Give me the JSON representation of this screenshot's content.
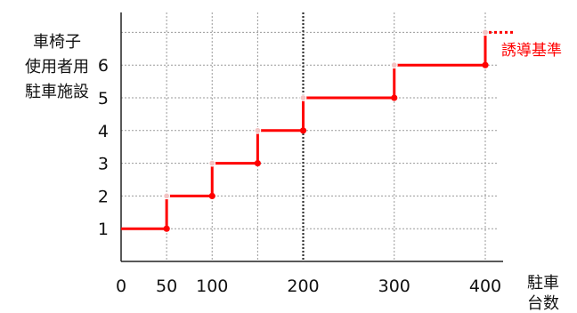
{
  "chart_data": {
    "type": "line",
    "step": true,
    "ylabel_lines": [
      "車椅子",
      "使用者用",
      "駐車施設"
    ],
    "xlabel_lines": [
      "駐車",
      "台数"
    ],
    "x_ticks": [
      0,
      50,
      100,
      200,
      300,
      400
    ],
    "x_tick_labels": [
      "0",
      "50",
      "100",
      "200",
      "300",
      "400"
    ],
    "x_gridlines": [
      50,
      100,
      150,
      200,
      300,
      400
    ],
    "x_dotted_line": 200,
    "y_ticks": [
      1,
      2,
      3,
      4,
      5,
      6
    ],
    "y_tick_labels": [
      "1",
      "2",
      "3",
      "4",
      "5",
      "6"
    ],
    "xlim": [
      0,
      400
    ],
    "ylim": [
      0,
      7
    ],
    "grid": true,
    "series": [
      {
        "color": "#ff0000",
        "steps": [
          {
            "from": 0,
            "to": 50,
            "value": 1
          },
          {
            "from": 50,
            "to": 100,
            "value": 2
          },
          {
            "from": 100,
            "to": 150,
            "value": 3
          },
          {
            "from": 150,
            "to": 200,
            "value": 4
          },
          {
            "from": 200,
            "to": 300,
            "value": 5
          },
          {
            "from": 300,
            "to": 400,
            "value": 6
          }
        ]
      }
    ],
    "annotation": {
      "text": "誘導基準",
      "x": 400,
      "y": 7,
      "color": "#ff0000"
    }
  }
}
